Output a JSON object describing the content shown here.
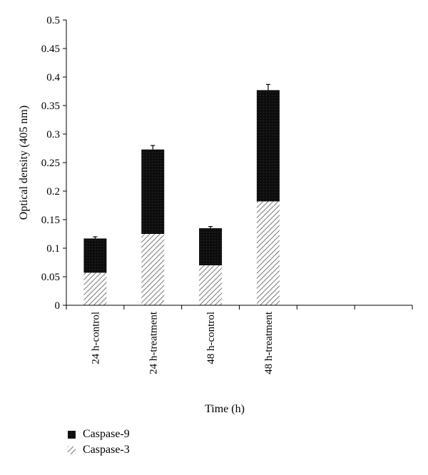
{
  "chart_data": {
    "type": "bar",
    "stacked": true,
    "categories": [
      "24 h-control",
      "24 h-treatment",
      "48 h-control",
      "48 h-treatment",
      "",
      ""
    ],
    "series": [
      {
        "name": "Caspase-3",
        "values": [
          0.057,
          0.125,
          0.07,
          0.182,
          null,
          null
        ],
        "errors": [
          0.003,
          0.004,
          0.003,
          0.008,
          null,
          null
        ],
        "pattern": "diagonal-hatch",
        "color": "#888888"
      },
      {
        "name": "Caspase-9",
        "values": [
          0.06,
          0.148,
          0.065,
          0.195,
          null,
          null
        ],
        "errors": [
          0.003,
          0.007,
          0.003,
          0.01,
          null,
          null
        ],
        "pattern": "dotted-black",
        "color": "#111111"
      }
    ],
    "ylabel": "Optical density (405 nm)",
    "xlabel": "Time (h)",
    "ylim": [
      0,
      0.5
    ],
    "yticks": [
      "0",
      "0.05",
      "0.1",
      "0.15",
      "0.2",
      "0.25",
      "0.3",
      "0.35",
      "0.4",
      "0.45",
      "0.5"
    ],
    "legend": {
      "position": "bottom-left",
      "entries": [
        "Caspase-9",
        "Caspase-3"
      ]
    },
    "grid": false
  }
}
